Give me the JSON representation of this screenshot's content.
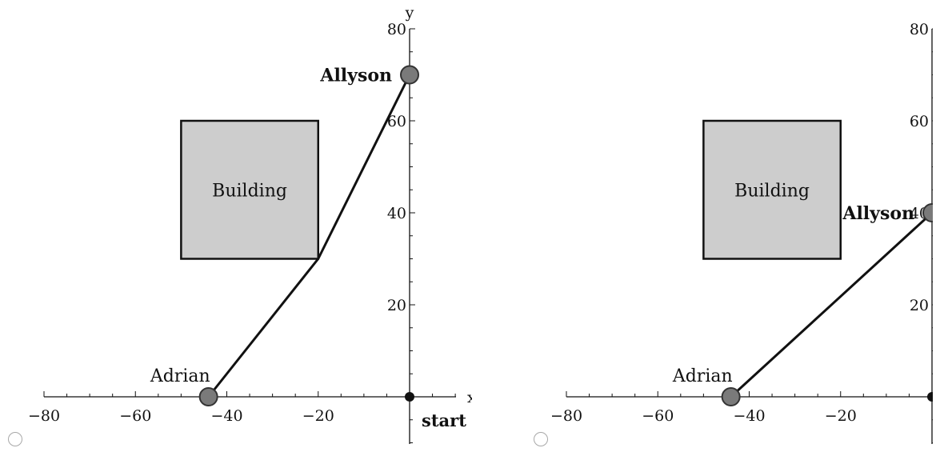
{
  "choices": [
    {
      "option_label": "",
      "chart_data": {
        "type": "scatter",
        "xlabel": "x",
        "ylabel": "y",
        "xlim": [
          -80,
          0
        ],
        "ylim": [
          0,
          80
        ],
        "x_ticks": [
          "−80",
          "−60",
          "−40",
          "−20"
        ],
        "y_ticks": [
          "20",
          "40",
          "60",
          "80"
        ],
        "building": {
          "label": "Building",
          "x": [
            -50,
            -20
          ],
          "y": [
            30,
            60
          ]
        },
        "path": {
          "x": [
            -44,
            -20,
            0
          ],
          "y": [
            0,
            30,
            70
          ]
        },
        "points": [
          {
            "name": "Adrian",
            "x": -44,
            "y": 0
          },
          {
            "name": "Allyson",
            "x": 0,
            "y": 70
          }
        ],
        "origin_label": "start"
      }
    },
    {
      "option_label": "",
      "chart_data": {
        "type": "scatter",
        "xlabel": "",
        "ylabel": "",
        "xlim": [
          -80,
          0
        ],
        "ylim": [
          0,
          80
        ],
        "x_ticks": [
          "−80",
          "−60",
          "−40",
          "−20"
        ],
        "y_ticks": [
          "20",
          "40",
          "60",
          "80"
        ],
        "building": {
          "label": "Building",
          "x": [
            -50,
            -20
          ],
          "y": [
            30,
            60
          ]
        },
        "path": {
          "x": [
            -44,
            0
          ],
          "y": [
            0,
            40
          ]
        },
        "points": [
          {
            "name": "Adrian",
            "x": -44,
            "y": 0
          },
          {
            "name": "Allyson",
            "x": 0,
            "y": 40
          }
        ],
        "origin_label": ""
      }
    }
  ],
  "colors": {
    "building_fill": "#cdcdcd",
    "marker_fill": "#7a7a7a",
    "line": "#111111"
  }
}
